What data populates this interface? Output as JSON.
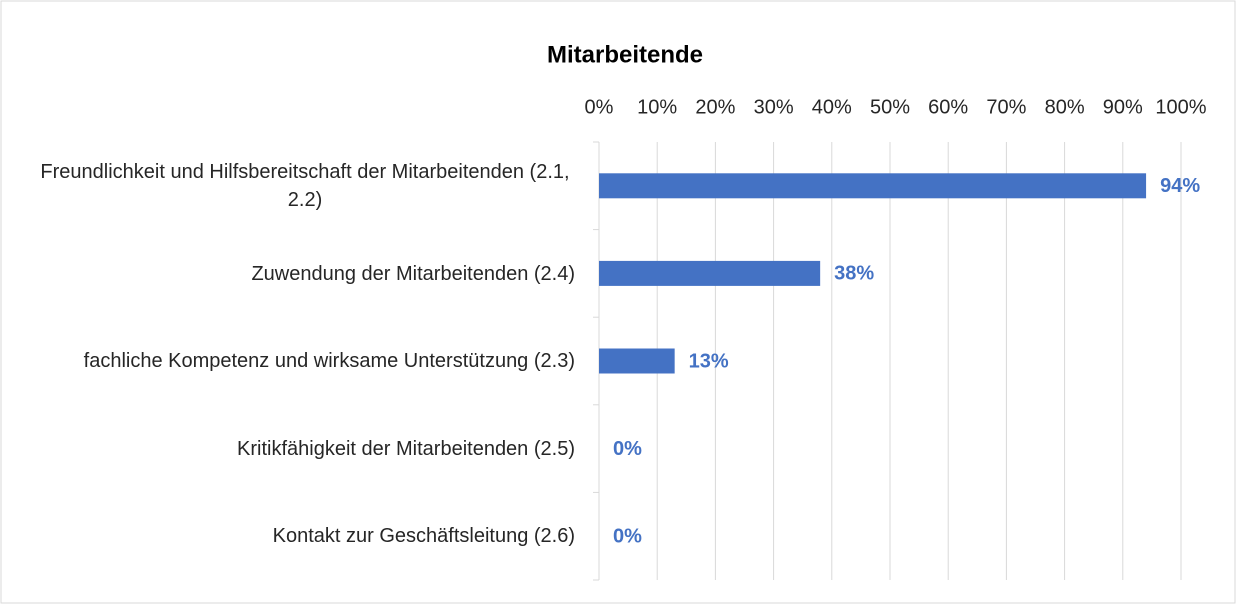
{
  "chart_data": {
    "type": "bar",
    "orientation": "horizontal",
    "title": "Mitarbeitende",
    "categories": [
      "Freundlichkeit und Hilfsbereitschaft der Mitarbeitenden (2.1, 2.2)",
      "Zuwendung der Mitarbeitenden (2.4)",
      "fachliche Kompetenz und wirksame Unterstützung (2.3)",
      "Kritikfähigkeit der Mitarbeitenden (2.5)",
      "Kontakt zur Geschäftsleitung (2.6)"
    ],
    "values": [
      94,
      38,
      13,
      0,
      0
    ],
    "value_labels": [
      "94%",
      "38%",
      "13%",
      "0%",
      "0%"
    ],
    "color": "#4472c4",
    "xlim": [
      0,
      100
    ],
    "xticks": [
      {
        "value": 0,
        "label": "0%"
      },
      {
        "value": 10,
        "label": "10%"
      },
      {
        "value": 20,
        "label": "20%"
      },
      {
        "value": 30,
        "label": "30%"
      },
      {
        "value": 40,
        "label": "40%"
      },
      {
        "value": 50,
        "label": "50%"
      },
      {
        "value": 60,
        "label": "60%"
      },
      {
        "value": 70,
        "label": "70%"
      },
      {
        "value": 80,
        "label": "80%"
      },
      {
        "value": 90,
        "label": "90%"
      },
      {
        "value": 100,
        "label": "100%"
      }
    ],
    "grid": true
  }
}
